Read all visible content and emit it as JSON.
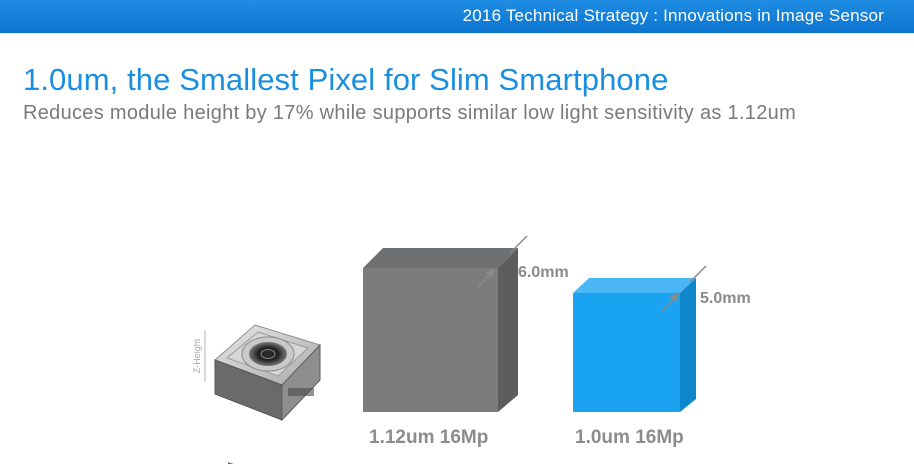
{
  "header": {
    "title": "2016 Technical Strategy : Innovations in Image Sensor"
  },
  "slide": {
    "headline": "1.0um, the Smallest Pixel for Slim Smartphone",
    "subheadline": "Reduces module height by 17% while supports similar low light sensitivity as 1.12um"
  },
  "illustration": {
    "module_axis_label": "Z-Height",
    "blocks": [
      {
        "height_label": "6.0mm",
        "caption": "1.12um 16Mp",
        "color": "#7a7c7e"
      },
      {
        "height_label": "5.0mm",
        "caption": "1.0um 16Mp",
        "color": "#1aa3f0"
      }
    ]
  },
  "colors": {
    "accent": "#1a8fe0",
    "header_bar": "#0b74cf",
    "subtext": "#7a7a7a"
  }
}
